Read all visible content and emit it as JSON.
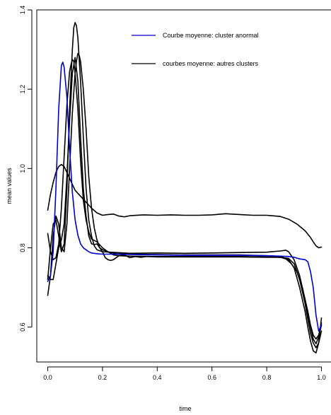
{
  "chart_data": {
    "type": "line",
    "xlabel": "time",
    "ylabel": "mean values",
    "xlim": [
      -0.04,
      1.04
    ],
    "ylim": [
      0.512,
      1.4
    ],
    "x_ticks": [
      "0.0",
      "0.2",
      "0.4",
      "0.6",
      "0.8",
      "1.0"
    ],
    "y_ticks": [
      "0.6",
      "0.8",
      "1.0",
      "1.2",
      "1.4"
    ],
    "grid": false,
    "legend_position": "top-right",
    "legend": [
      {
        "label": "Courbe moyenne: cluster anormal",
        "color": "#0000cc"
      },
      {
        "label": "courbes moyenne: autres clusters",
        "color": "#000000"
      }
    ],
    "series": [
      {
        "color": "#000000",
        "points": [
          [
            0.0,
            0.895
          ],
          [
            0.01,
            0.935
          ],
          [
            0.02,
            0.965
          ],
          [
            0.03,
            0.99
          ],
          [
            0.04,
            1.005
          ],
          [
            0.05,
            1.01
          ],
          [
            0.06,
            1.005
          ],
          [
            0.07,
            0.99
          ],
          [
            0.08,
            0.975
          ],
          [
            0.09,
            0.96
          ],
          [
            0.1,
            0.945
          ],
          [
            0.12,
            0.93
          ],
          [
            0.14,
            0.915
          ],
          [
            0.16,
            0.9
          ],
          [
            0.18,
            0.888
          ],
          [
            0.2,
            0.882
          ],
          [
            0.22,
            0.884
          ],
          [
            0.24,
            0.885
          ],
          [
            0.26,
            0.88
          ],
          [
            0.28,
            0.878
          ],
          [
            0.3,
            0.881
          ],
          [
            0.35,
            0.883
          ],
          [
            0.4,
            0.882
          ],
          [
            0.45,
            0.883
          ],
          [
            0.5,
            0.882
          ],
          [
            0.55,
            0.882
          ],
          [
            0.6,
            0.883
          ],
          [
            0.65,
            0.886
          ],
          [
            0.7,
            0.884
          ],
          [
            0.75,
            0.882
          ],
          [
            0.8,
            0.882
          ],
          [
            0.85,
            0.879
          ],
          [
            0.88,
            0.872
          ],
          [
            0.91,
            0.86
          ],
          [
            0.94,
            0.843
          ],
          [
            0.96,
            0.826
          ],
          [
            0.97,
            0.815
          ],
          [
            0.98,
            0.805
          ],
          [
            0.99,
            0.8
          ],
          [
            1.0,
            0.802
          ]
        ]
      },
      {
        "color": "#000000",
        "points": [
          [
            0.0,
            0.836
          ],
          [
            0.01,
            0.79
          ],
          [
            0.02,
            0.77
          ],
          [
            0.03,
            0.775
          ],
          [
            0.04,
            0.81
          ],
          [
            0.05,
            0.9
          ],
          [
            0.06,
            1.03
          ],
          [
            0.07,
            1.16
          ],
          [
            0.08,
            1.245
          ],
          [
            0.085,
            1.262
          ],
          [
            0.09,
            1.275
          ],
          [
            0.095,
            1.27
          ],
          [
            0.1,
            1.24
          ],
          [
            0.11,
            1.15
          ],
          [
            0.12,
            1.02
          ],
          [
            0.13,
            0.92
          ],
          [
            0.14,
            0.87
          ],
          [
            0.15,
            0.84
          ],
          [
            0.16,
            0.822
          ],
          [
            0.18,
            0.815
          ],
          [
            0.2,
            0.8
          ],
          [
            0.22,
            0.79
          ],
          [
            0.24,
            0.782
          ],
          [
            0.26,
            0.78
          ],
          [
            0.3,
            0.779
          ],
          [
            0.4,
            0.778
          ],
          [
            0.5,
            0.778
          ],
          [
            0.6,
            0.778
          ],
          [
            0.7,
            0.778
          ],
          [
            0.8,
            0.777
          ],
          [
            0.85,
            0.776
          ],
          [
            0.88,
            0.773
          ],
          [
            0.9,
            0.76
          ],
          [
            0.92,
            0.72
          ],
          [
            0.94,
            0.66
          ],
          [
            0.95,
            0.62
          ],
          [
            0.96,
            0.585
          ],
          [
            0.97,
            0.56
          ],
          [
            0.98,
            0.548
          ],
          [
            0.99,
            0.56
          ],
          [
            1.0,
            0.59
          ]
        ]
      },
      {
        "color": "#000000",
        "points": [
          [
            0.0,
            0.72
          ],
          [
            0.01,
            0.8
          ],
          [
            0.02,
            0.86
          ],
          [
            0.03,
            0.87
          ],
          [
            0.04,
            0.83
          ],
          [
            0.05,
            0.79
          ],
          [
            0.06,
            0.81
          ],
          [
            0.07,
            0.95
          ],
          [
            0.08,
            1.15
          ],
          [
            0.09,
            1.3
          ],
          [
            0.095,
            1.355
          ],
          [
            0.1,
            1.368
          ],
          [
            0.105,
            1.36
          ],
          [
            0.11,
            1.33
          ],
          [
            0.12,
            1.22
          ],
          [
            0.13,
            1.08
          ],
          [
            0.14,
            0.95
          ],
          [
            0.15,
            0.87
          ],
          [
            0.16,
            0.83
          ],
          [
            0.17,
            0.805
          ],
          [
            0.18,
            0.795
          ],
          [
            0.2,
            0.79
          ],
          [
            0.25,
            0.788
          ],
          [
            0.3,
            0.786
          ],
          [
            0.4,
            0.787
          ],
          [
            0.5,
            0.786
          ],
          [
            0.6,
            0.787
          ],
          [
            0.7,
            0.788
          ],
          [
            0.8,
            0.789
          ],
          [
            0.85,
            0.792
          ],
          [
            0.87,
            0.794
          ],
          [
            0.88,
            0.79
          ],
          [
            0.9,
            0.77
          ],
          [
            0.92,
            0.73
          ],
          [
            0.94,
            0.67
          ],
          [
            0.96,
            0.6
          ],
          [
            0.97,
            0.57
          ],
          [
            0.98,
            0.558
          ],
          [
            0.99,
            0.575
          ],
          [
            1.0,
            0.605
          ]
        ]
      },
      {
        "color": "#000000",
        "points": [
          [
            0.0,
            0.68
          ],
          [
            0.01,
            0.73
          ],
          [
            0.02,
            0.83
          ],
          [
            0.03,
            0.88
          ],
          [
            0.04,
            0.86
          ],
          [
            0.05,
            0.8
          ],
          [
            0.06,
            0.79
          ],
          [
            0.07,
            0.86
          ],
          [
            0.08,
            1.0
          ],
          [
            0.09,
            1.14
          ],
          [
            0.1,
            1.24
          ],
          [
            0.105,
            1.27
          ],
          [
            0.11,
            1.29
          ],
          [
            0.115,
            1.285
          ],
          [
            0.12,
            1.27
          ],
          [
            0.13,
            1.2
          ],
          [
            0.14,
            1.1
          ],
          [
            0.15,
            0.98
          ],
          [
            0.16,
            0.9
          ],
          [
            0.17,
            0.85
          ],
          [
            0.18,
            0.82
          ],
          [
            0.19,
            0.8
          ],
          [
            0.2,
            0.795
          ],
          [
            0.22,
            0.79
          ],
          [
            0.25,
            0.785
          ],
          [
            0.3,
            0.784
          ],
          [
            0.4,
            0.783
          ],
          [
            0.5,
            0.782
          ],
          [
            0.6,
            0.782
          ],
          [
            0.7,
            0.782
          ],
          [
            0.8,
            0.78
          ],
          [
            0.85,
            0.778
          ],
          [
            0.88,
            0.77
          ],
          [
            0.9,
            0.75
          ],
          [
            0.92,
            0.7
          ],
          [
            0.94,
            0.64
          ],
          [
            0.95,
            0.6
          ],
          [
            0.96,
            0.565
          ],
          [
            0.97,
            0.54
          ],
          [
            0.98,
            0.535
          ],
          [
            0.99,
            0.56
          ],
          [
            1.0,
            0.623
          ]
        ]
      },
      {
        "color": "#000000",
        "points": [
          [
            0.0,
            0.73
          ],
          [
            0.01,
            0.72
          ],
          [
            0.02,
            0.72
          ],
          [
            0.03,
            0.76
          ],
          [
            0.04,
            0.8
          ],
          [
            0.05,
            0.82
          ],
          [
            0.06,
            0.86
          ],
          [
            0.07,
            0.98
          ],
          [
            0.08,
            1.12
          ],
          [
            0.09,
            1.24
          ],
          [
            0.1,
            1.28
          ],
          [
            0.11,
            1.22
          ],
          [
            0.12,
            1.08
          ],
          [
            0.13,
            0.95
          ],
          [
            0.14,
            0.88
          ],
          [
            0.15,
            0.83
          ],
          [
            0.16,
            0.81
          ],
          [
            0.17,
            0.808
          ],
          [
            0.18,
            0.81
          ],
          [
            0.19,
            0.8
          ],
          [
            0.2,
            0.79
          ],
          [
            0.21,
            0.775
          ],
          [
            0.22,
            0.77
          ],
          [
            0.23,
            0.768
          ],
          [
            0.24,
            0.77
          ],
          [
            0.26,
            0.78
          ],
          [
            0.28,
            0.782
          ],
          [
            0.3,
            0.775
          ],
          [
            0.32,
            0.778
          ],
          [
            0.34,
            0.776
          ],
          [
            0.36,
            0.778
          ],
          [
            0.4,
            0.777
          ],
          [
            0.5,
            0.777
          ],
          [
            0.6,
            0.777
          ],
          [
            0.7,
            0.777
          ],
          [
            0.8,
            0.776
          ],
          [
            0.85,
            0.776
          ],
          [
            0.87,
            0.772
          ],
          [
            0.89,
            0.76
          ],
          [
            0.91,
            0.74
          ],
          [
            0.93,
            0.7
          ],
          [
            0.95,
            0.64
          ],
          [
            0.96,
            0.605
          ],
          [
            0.97,
            0.58
          ],
          [
            0.98,
            0.57
          ],
          [
            0.99,
            0.58
          ],
          [
            1.0,
            0.61
          ]
        ]
      },
      {
        "color": "#0000cc",
        "points": [
          [
            0.0,
            0.715
          ],
          [
            0.01,
            0.73
          ],
          [
            0.02,
            0.79
          ],
          [
            0.03,
            0.95
          ],
          [
            0.04,
            1.15
          ],
          [
            0.05,
            1.26
          ],
          [
            0.055,
            1.268
          ],
          [
            0.06,
            1.255
          ],
          [
            0.07,
            1.18
          ],
          [
            0.08,
            1.05
          ],
          [
            0.09,
            0.94
          ],
          [
            0.1,
            0.87
          ],
          [
            0.11,
            0.832
          ],
          [
            0.12,
            0.81
          ],
          [
            0.13,
            0.8
          ],
          [
            0.14,
            0.795
          ],
          [
            0.15,
            0.79
          ],
          [
            0.16,
            0.787
          ],
          [
            0.18,
            0.785
          ],
          [
            0.2,
            0.784
          ],
          [
            0.25,
            0.784
          ],
          [
            0.3,
            0.783
          ],
          [
            0.4,
            0.782
          ],
          [
            0.5,
            0.781
          ],
          [
            0.6,
            0.781
          ],
          [
            0.7,
            0.781
          ],
          [
            0.8,
            0.78
          ],
          [
            0.85,
            0.779
          ],
          [
            0.88,
            0.778
          ],
          [
            0.9,
            0.776
          ],
          [
            0.92,
            0.772
          ],
          [
            0.94,
            0.77
          ],
          [
            0.95,
            0.765
          ],
          [
            0.96,
            0.74
          ],
          [
            0.97,
            0.7
          ],
          [
            0.98,
            0.63
          ],
          [
            0.99,
            0.59
          ],
          [
            1.0,
            0.605
          ]
        ]
      }
    ]
  }
}
